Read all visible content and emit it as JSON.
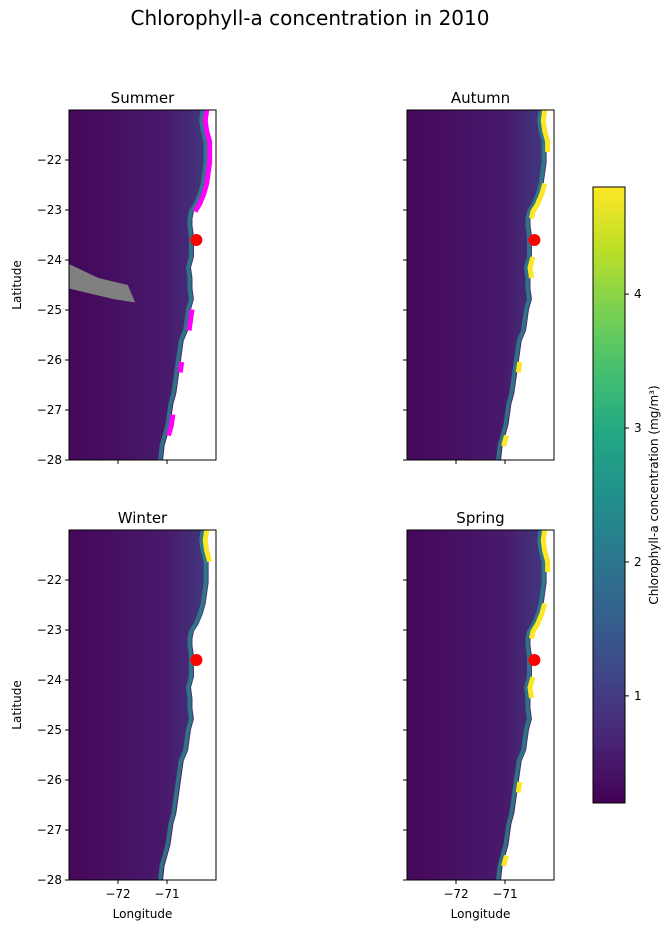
{
  "chart_data": {
    "type": "heatmap",
    "title": "Chlorophyll-a concentration in 2010",
    "xlabel": "Longitude",
    "ylabel": "Latitude",
    "xlim": [
      -73.0,
      -70.0
    ],
    "ylim": [
      -28.0,
      -21.0
    ],
    "x_ticks": [
      -72,
      -71
    ],
    "x_tick_labels": [
      "−72",
      "−71"
    ],
    "y_ticks": [
      -22,
      -23,
      -24,
      -25,
      -26,
      -27,
      -28
    ],
    "y_tick_labels": [
      "−22",
      "−23",
      "−24",
      "−25",
      "−26",
      "−27",
      "−28"
    ],
    "colorbar": {
      "label": "Chlorophyll-a concentration (mg/m³)",
      "colormap": "viridis",
      "range": [
        0.2,
        4.8
      ],
      "ticks": [
        1,
        2,
        3,
        4
      ],
      "tick_labels": [
        "1",
        "2",
        "3",
        "4"
      ]
    },
    "marker": {
      "lon": -70.4,
      "lat": -23.6,
      "color": "#ff0000"
    },
    "colors": {
      "above_range": "#ff00ff",
      "no_data_patch": "#808080"
    },
    "panels": [
      {
        "title": "Summer",
        "highlight": "magenta",
        "has_gray_patch": true
      },
      {
        "title": "Autumn",
        "highlight": "yellow",
        "has_gray_patch": false
      },
      {
        "title": "Winter",
        "highlight": "yellow_sparse",
        "has_gray_patch": false
      },
      {
        "title": "Spring",
        "highlight": "yellow",
        "has_gray_patch": false
      }
    ],
    "grid": false
  }
}
